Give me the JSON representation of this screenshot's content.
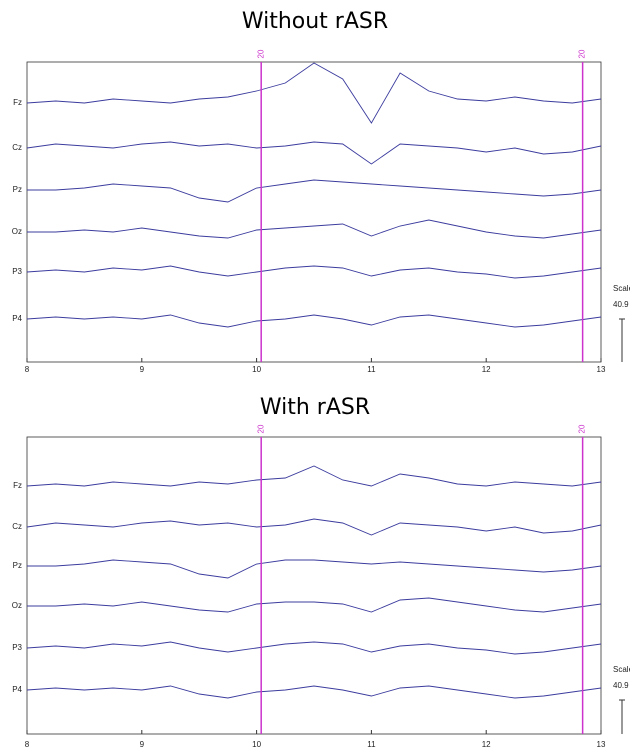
{
  "chart_data": [
    {
      "type": "line",
      "title": "Without rASR",
      "x": [
        8,
        8.25,
        8.5,
        8.75,
        9,
        9.25,
        9.5,
        9.75,
        10,
        10.25,
        10.5,
        10.75,
        11,
        11.25,
        11.5,
        11.75,
        12,
        12.25,
        12.5,
        12.75,
        13
      ],
      "xlim": [
        8,
        13
      ],
      "xticks": [
        8,
        9,
        10,
        11,
        12,
        13
      ],
      "series": [
        {
          "name": "Fz",
          "color": "#3b3b9e",
          "values": [
            0,
            0.1,
            0,
            0.2,
            0.1,
            0,
            0.2,
            0.3,
            0.6,
            1.0,
            2.0,
            1.2,
            -1.0,
            1.5,
            0.6,
            0.2,
            0.1,
            0.3,
            0.1,
            0,
            0.2
          ]
        },
        {
          "name": "Cz",
          "color": "#3b3b9e",
          "values": [
            0,
            0.2,
            0.1,
            0,
            0.2,
            0.3,
            0.1,
            0.2,
            0,
            0.1,
            0.3,
            0.2,
            -0.8,
            0.2,
            0.1,
            0,
            -0.2,
            0,
            -0.3,
            -0.2,
            0.1
          ]
        },
        {
          "name": "Pz",
          "color": "#3b3b9e",
          "values": [
            0,
            0,
            0.1,
            0.3,
            0.2,
            0.1,
            -0.4,
            -0.6,
            0.1,
            0.3,
            0.5,
            0.4,
            0.3,
            0.2,
            0.1,
            0,
            -0.1,
            -0.2,
            -0.3,
            -0.2,
            0
          ]
        },
        {
          "name": "Oz",
          "color": "#3b3b9e",
          "values": [
            0,
            0,
            0.1,
            0,
            0.2,
            0,
            -0.2,
            -0.3,
            0.1,
            0.2,
            0.3,
            0.4,
            -0.2,
            0.3,
            0.6,
            0.3,
            0,
            -0.2,
            -0.3,
            -0.1,
            0.1
          ]
        },
        {
          "name": "P3",
          "color": "#3b3b9e",
          "values": [
            0,
            0.1,
            0,
            0.2,
            0.1,
            0.3,
            0,
            -0.2,
            0,
            0.2,
            0.3,
            0.2,
            -0.2,
            0.1,
            0.2,
            0,
            -0.1,
            -0.3,
            -0.2,
            0,
            0.2
          ]
        },
        {
          "name": "P4",
          "color": "#3b3b9e",
          "values": [
            0,
            0.1,
            0,
            0.1,
            0,
            0.2,
            -0.2,
            -0.4,
            -0.1,
            0,
            0.2,
            0,
            -0.3,
            0.1,
            0.2,
            0,
            -0.2,
            -0.4,
            -0.3,
            -0.1,
            0.1
          ]
        }
      ],
      "events": [
        {
          "x": 10.04,
          "label": "20"
        },
        {
          "x": 12.84,
          "label": "20"
        }
      ],
      "event_color": "#cc33cc",
      "scale_label": "Scale",
      "scale_value": "40.9"
    },
    {
      "type": "line",
      "title": "With rASR",
      "x": [
        8,
        8.25,
        8.5,
        8.75,
        9,
        9.25,
        9.5,
        9.75,
        10,
        10.25,
        10.5,
        10.75,
        11,
        11.25,
        11.5,
        11.75,
        12,
        12.25,
        12.5,
        12.75,
        13
      ],
      "xlim": [
        8,
        13
      ],
      "xticks": [
        8,
        9,
        10,
        11,
        12,
        13
      ],
      "series": [
        {
          "name": "Fz",
          "color": "#3b3b9e",
          "values": [
            0,
            0.1,
            0,
            0.2,
            0.1,
            0,
            0.2,
            0.1,
            0.3,
            0.4,
            1.0,
            0.3,
            0,
            0.6,
            0.4,
            0.1,
            0,
            0.2,
            0.1,
            0,
            0.2
          ]
        },
        {
          "name": "Cz",
          "color": "#3b3b9e",
          "values": [
            0,
            0.2,
            0.1,
            0,
            0.2,
            0.3,
            0.1,
            0.2,
            0,
            0.1,
            0.4,
            0.2,
            -0.4,
            0.2,
            0.1,
            0,
            -0.2,
            0,
            -0.3,
            -0.2,
            0.1
          ]
        },
        {
          "name": "Pz",
          "color": "#3b3b9e",
          "values": [
            0,
            0,
            0.1,
            0.3,
            0.2,
            0.1,
            -0.4,
            -0.6,
            0.1,
            0.3,
            0.3,
            0.2,
            0.1,
            0.2,
            0.1,
            0,
            -0.1,
            -0.2,
            -0.3,
            -0.2,
            0
          ]
        },
        {
          "name": "Oz",
          "color": "#3b3b9e",
          "values": [
            0,
            0,
            0.1,
            0,
            0.2,
            0,
            -0.2,
            -0.3,
            0.1,
            0.2,
            0.2,
            0.1,
            -0.3,
            0.3,
            0.4,
            0.2,
            0,
            -0.2,
            -0.3,
            -0.1,
            0.1
          ]
        },
        {
          "name": "P3",
          "color": "#3b3b9e",
          "values": [
            0,
            0.1,
            0,
            0.2,
            0.1,
            0.3,
            0,
            -0.2,
            0,
            0.2,
            0.3,
            0.2,
            -0.2,
            0.1,
            0.2,
            0,
            -0.1,
            -0.3,
            -0.2,
            0,
            0.2
          ]
        },
        {
          "name": "P4",
          "color": "#3b3b9e",
          "values": [
            0,
            0.1,
            0,
            0.1,
            0,
            0.2,
            -0.2,
            -0.4,
            -0.1,
            0,
            0.2,
            0,
            -0.3,
            0.1,
            0.2,
            0,
            -0.2,
            -0.4,
            -0.3,
            -0.1,
            0.1
          ]
        }
      ],
      "events": [
        {
          "x": 10.04,
          "label": "20"
        },
        {
          "x": 12.84,
          "label": "20"
        }
      ],
      "event_color": "#cc33cc",
      "scale_label": "Scale",
      "scale_value": "40.9"
    }
  ]
}
